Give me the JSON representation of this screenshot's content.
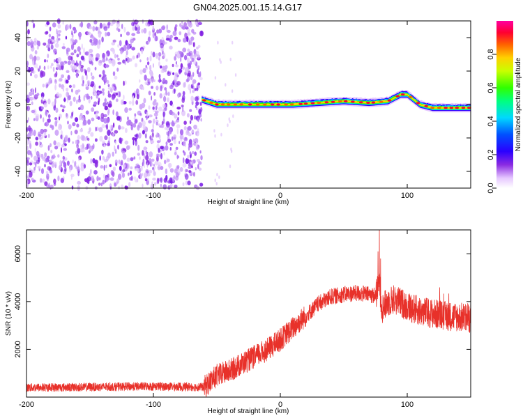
{
  "title": "GN04.2025.001.15.14.G17",
  "chart_data": [
    {
      "type": "heatmap",
      "xlabel": "Height of straight line (km)",
      "ylabel": "Frequency (Hz)",
      "xlim": [
        -200,
        150
      ],
      "ylim": [
        -50,
        50
      ],
      "xticks": [
        -200,
        -100,
        0,
        100
      ],
      "yticks": [
        -40,
        -20,
        0,
        20,
        40
      ],
      "noise_region_x": [
        -200,
        -62
      ],
      "signal_track": {
        "x": [
          -62,
          -50,
          -30,
          -10,
          10,
          30,
          50,
          70,
          85,
          95,
          100,
          110,
          120,
          135,
          150
        ],
        "freq": [
          3,
          0,
          0,
          0,
          0,
          1,
          2,
          1,
          2,
          6,
          6,
          0,
          -2,
          -2,
          -2
        ]
      },
      "colorbar": {
        "label": "Normalized spectral amplitude",
        "ticks": [
          0.0,
          0.2,
          0.4,
          0.6,
          0.8
        ],
        "range": [
          0,
          1
        ]
      }
    },
    {
      "type": "line",
      "xlabel": "Height of straight line (km)",
      "ylabel": "SNR (10 * v/v)",
      "xlim": [
        -200,
        150
      ],
      "ylim": [
        0,
        7000
      ],
      "xticks": [
        -200,
        -100,
        0,
        100
      ],
      "yticks": [
        2000,
        4000,
        6000
      ],
      "color": "#e8312a",
      "series_trend": {
        "x": [
          -200,
          -150,
          -100,
          -60,
          -50,
          -40,
          -30,
          -20,
          -10,
          0,
          10,
          20,
          30,
          40,
          50,
          60,
          70,
          75,
          78,
          80,
          85,
          90,
          100,
          110,
          120,
          130,
          140,
          150
        ],
        "snr": [
          400,
          420,
          450,
          420,
          900,
          1100,
          1400,
          1700,
          2000,
          2400,
          2900,
          3400,
          3900,
          4200,
          4300,
          4350,
          4300,
          4250,
          4800,
          3700,
          4000,
          4100,
          3800,
          3600,
          3500,
          3400,
          3350,
          3300
        ]
      },
      "spikes": [
        {
          "x": 78,
          "snr": 7000
        },
        {
          "x": 77,
          "snr": 6100
        },
        {
          "x": 79,
          "snr": 5800
        }
      ]
    }
  ]
}
